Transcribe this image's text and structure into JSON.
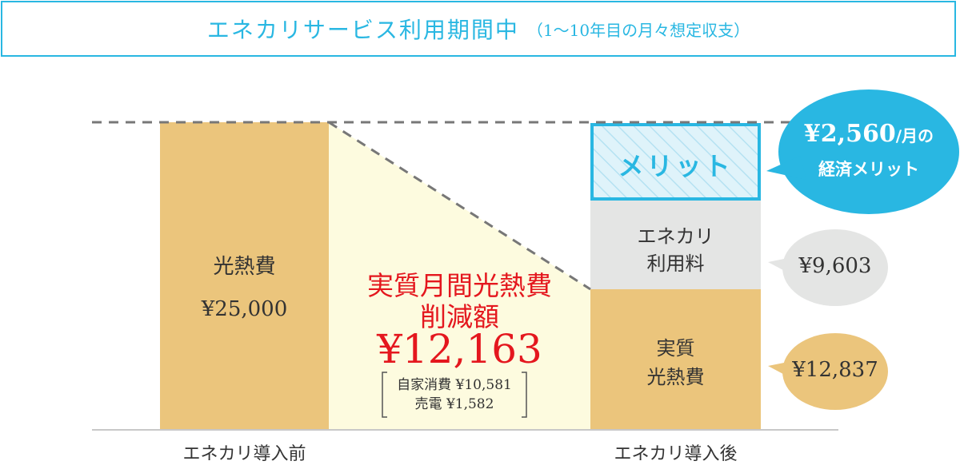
{
  "header": {
    "title": "エネカリサービス利用期間中",
    "subtitle": "（1〜10年目の月々想定収支）"
  },
  "before": {
    "label": "光熱費",
    "value": "¥25,000",
    "axis_label": "エネカリ導入前"
  },
  "reduction": {
    "title_line1": "実質月間光熱費",
    "title_line2": "削減額",
    "amount": "¥12,163",
    "detail_line1": "自家消費 ¥10,581",
    "detail_line2": "売電 ¥1,582"
  },
  "after": {
    "merit_label": "メリット",
    "fee_label_line1": "エネカリ",
    "fee_label_line2": "利用料",
    "net_label_line1": "実質",
    "net_label_line2": "光熱費",
    "axis_label": "エネカリ導入後"
  },
  "bubbles": {
    "merit_amount": "¥2,560",
    "merit_unit": "/月の",
    "merit_caption": "経済メリット",
    "fee_amount": "¥9,603",
    "net_amount": "¥12,837"
  },
  "colors": {
    "accent": "#29b7e2",
    "bar": "#ebc57c",
    "reduction_fill": "#fdfbdf",
    "fee_fill": "#e4e5e4",
    "merit_fill": "#dff3fa",
    "reduction_text": "#e4171e"
  }
}
